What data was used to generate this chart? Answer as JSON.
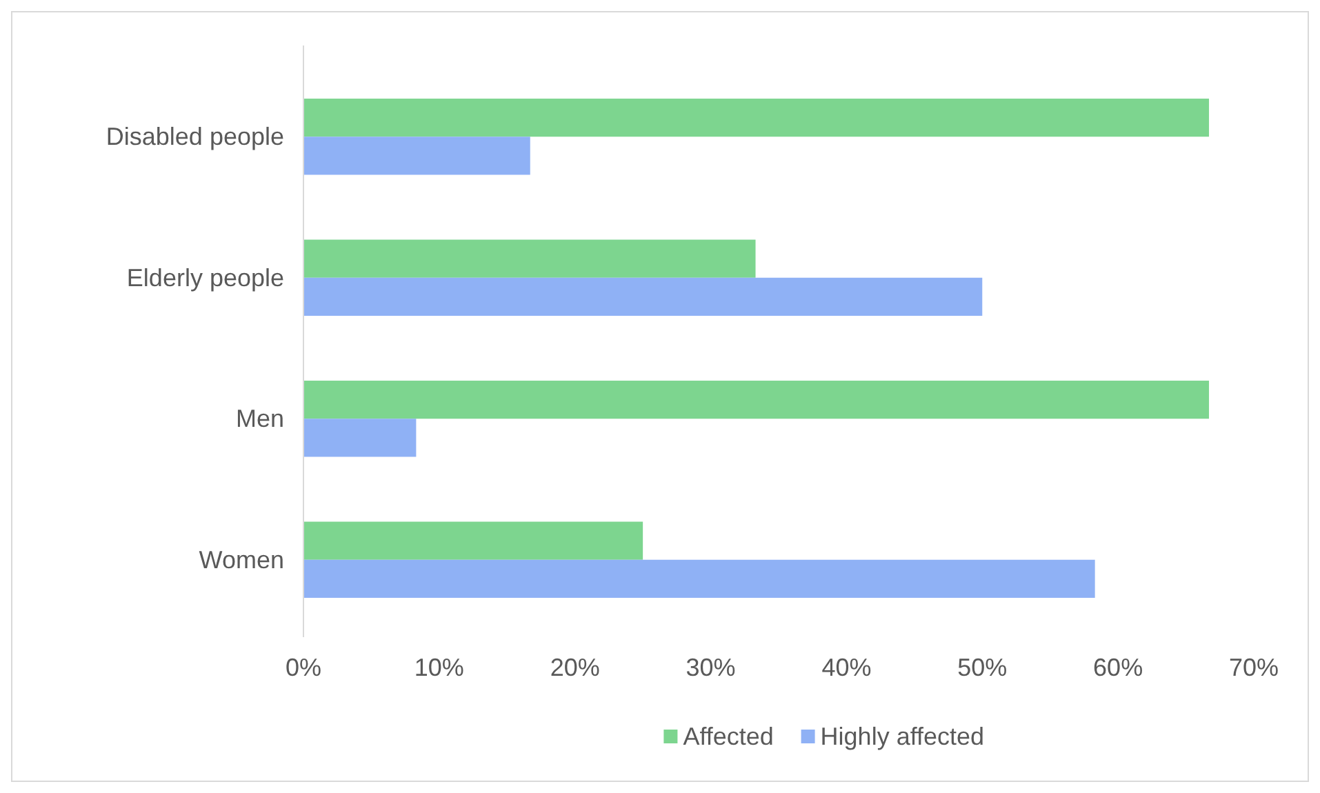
{
  "chart_data": {
    "type": "bar",
    "orientation": "horizontal",
    "categories": [
      "Disabled people",
      "Elderly people",
      "Men",
      "Women"
    ],
    "series": [
      {
        "name": "Affected",
        "color": "#7dd58f",
        "values": [
          66.7,
          33.3,
          66.7,
          25
        ]
      },
      {
        "name": "Highly affected",
        "color": "#8fb1f5",
        "values": [
          16.7,
          50,
          8.3,
          58.3
        ]
      }
    ],
    "xlim": [
      0,
      70
    ],
    "xticks": [
      {
        "value": 0,
        "label": "0%"
      },
      {
        "value": 10,
        "label": "10%"
      },
      {
        "value": 20,
        "label": "20%"
      },
      {
        "value": 30,
        "label": "30%"
      },
      {
        "value": 40,
        "label": "40%"
      },
      {
        "value": 50,
        "label": "50%"
      },
      {
        "value": 60,
        "label": "60%"
      },
      {
        "value": 70,
        "label": "70%"
      }
    ],
    "grid": false,
    "legend": "bottom"
  }
}
